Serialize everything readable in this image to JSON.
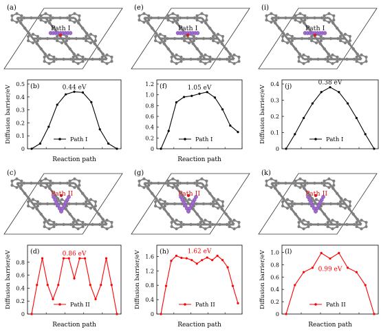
{
  "structure_panels": [
    {
      "letter": "(a)",
      "path_label": "Path I",
      "kind": "I"
    },
    {
      "letter": "(e)",
      "path_label": "Path I",
      "kind": "I"
    },
    {
      "letter": "(i)",
      "path_label": "Path I",
      "kind": "I"
    },
    {
      "letter": "(c)",
      "path_label": "Path II",
      "kind": "II"
    },
    {
      "letter": "(g)",
      "path_label": "Path II",
      "kind": "II"
    },
    {
      "letter": "(k)",
      "path_label": "Path II",
      "kind": "II"
    }
  ],
  "colors": {
    "path1": "#000000",
    "path2": "#ff0000",
    "atom": "#7f7f7f",
    "adatom": "#a06ad0",
    "path_label_red": "#cc1111"
  },
  "chart_data": [
    {
      "type": "line",
      "panel": "(b)",
      "ylabel": "Diffusion barrier/eV",
      "xlabel": "Reaction path",
      "ylim": [
        0,
        0.5
      ],
      "yticks": [
        "0",
        "0.1",
        "0.2",
        "0.3",
        "0.4",
        "0.5"
      ],
      "annotation": "0.44 eV",
      "series": [
        {
          "name": "Path I",
          "values": [
            0,
            0.04,
            0.17,
            0.34,
            0.42,
            0.44,
            0.435,
            0.36,
            0.15,
            0.04,
            0
          ]
        }
      ]
    },
    {
      "type": "line",
      "panel": "(f)",
      "ylabel": "",
      "xlabel": "Reaction path",
      "ylim": [
        0,
        1.2
      ],
      "yticks": [
        "0",
        "0.2",
        "0.4",
        "0.6",
        "0.8",
        "1.0",
        "1.2"
      ],
      "annotation": "1.05 eV",
      "series": [
        {
          "name": "Path I",
          "values": [
            0,
            0.33,
            0.86,
            0.96,
            0.98,
            1.02,
            1.05,
            0.95,
            0.73,
            0.43,
            0.31
          ]
        }
      ]
    },
    {
      "type": "line",
      "panel": "(j)",
      "ylabel": "Diffusion barrier/eV",
      "xlabel": "",
      "ylim": [
        0,
        0.4
      ],
      "yticks": [
        "0",
        "0.1",
        "0.2",
        "0.3",
        "0.4"
      ],
      "annotation": "0.38 eV",
      "series": [
        {
          "name": "Path I",
          "values": [
            0,
            0.09,
            0.19,
            0.28,
            0.35,
            0.38,
            0.35,
            0.28,
            0.19,
            0.09,
            0
          ]
        }
      ]
    },
    {
      "type": "line",
      "panel": "(d)",
      "ylabel": "Diffusion barrier/eV",
      "xlabel": "Reaction path",
      "ylim": [
        0,
        1.0
      ],
      "yticks": [
        "0",
        "0.2",
        "0.4",
        "0.6",
        "0.8"
      ],
      "annotation": "0.86 eV",
      "series": [
        {
          "name": "Path II",
          "values": [
            0,
            0.45,
            0.86,
            0.45,
            0.23,
            0.45,
            0.86,
            0.86,
            0.55,
            0.86,
            0.86,
            0.45,
            0.23,
            0.45,
            0.86,
            0.45,
            0
          ]
        }
      ]
    },
    {
      "type": "line",
      "panel": "(h)",
      "ylabel": "Diffusion barrier/eV",
      "xlabel": "Reaction path",
      "ylim": [
        0,
        1.8
      ],
      "yticks": [
        "0",
        "0.4",
        "0.8",
        "1.2",
        "1.6"
      ],
      "annotation": "1.62 eV",
      "series": [
        {
          "name": "Path II",
          "values": [
            0,
            0.78,
            1.48,
            1.62,
            1.56,
            1.55,
            1.5,
            1.4,
            1.5,
            1.57,
            1.5,
            1.62,
            1.5,
            1.3,
            0.78,
            0.3
          ]
        }
      ]
    },
    {
      "type": "line",
      "panel": "(l)",
      "ylabel": "Diffusion barrier/eV",
      "xlabel": "Reaction path",
      "ylim": [
        0,
        1.05
      ],
      "yticks": [
        "0",
        "0.2",
        "0.4",
        "0.6",
        "0.8",
        "1.0"
      ],
      "annotation": "0.99 eV",
      "series": [
        {
          "name": "Path II",
          "values": [
            0,
            0.47,
            0.68,
            0.75,
            0.99,
            0.9,
            0.99,
            0.75,
            0.68,
            0.47,
            0
          ]
        }
      ]
    }
  ]
}
